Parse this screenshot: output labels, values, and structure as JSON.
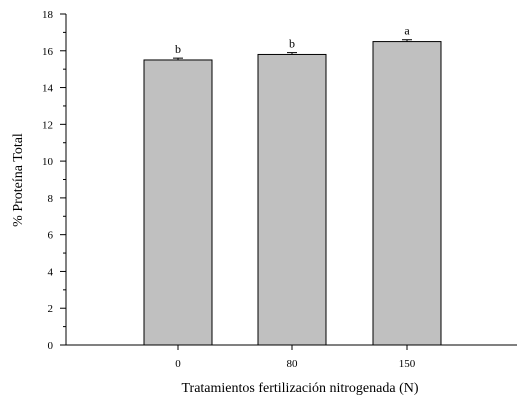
{
  "chart_data": {
    "type": "bar",
    "xlabel": "Tratamientos fertilización nitrogenada (N)",
    "ylabel": "% Proteína Total",
    "categories": [
      "0",
      "80",
      "150"
    ],
    "values": [
      15.5,
      15.8,
      16.5
    ],
    "errors": [
      0.1,
      0.1,
      0.1
    ],
    "significance": [
      "b",
      "b",
      "a"
    ],
    "ylim": [
      0,
      18
    ],
    "yticks": [
      0,
      2,
      4,
      6,
      8,
      10,
      12,
      14,
      16,
      18
    ],
    "grid": false,
    "bar_color": "#c0c0c0"
  }
}
